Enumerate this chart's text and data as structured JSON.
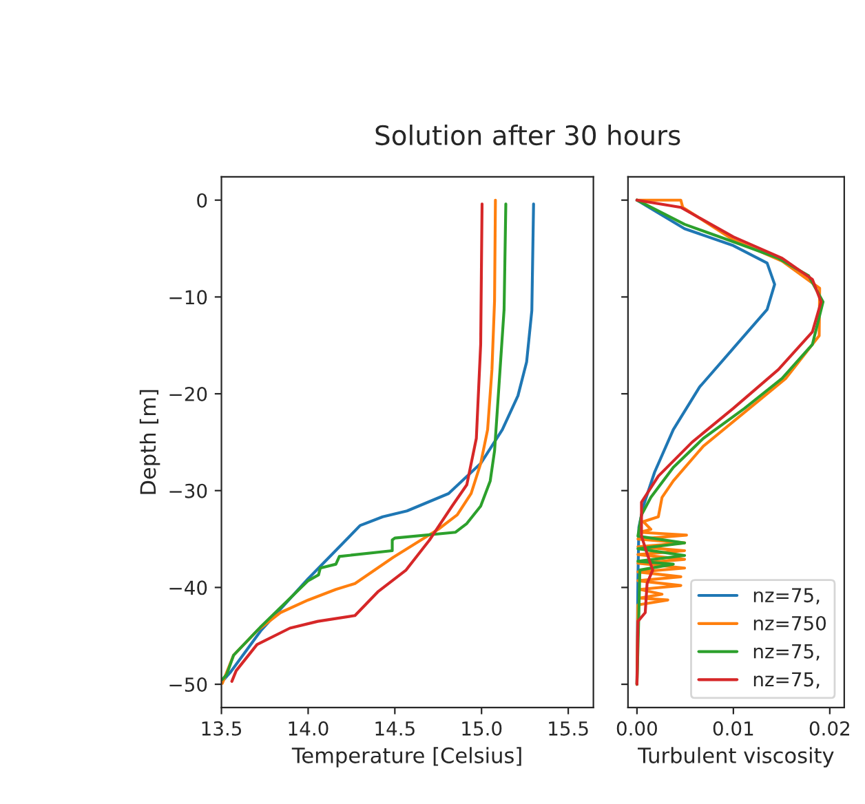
{
  "chart_data": [
    {
      "type": "line",
      "title": "Solution after 30 hours",
      "xlabel": "Temperature [Celsius]",
      "ylabel": "Depth [m]",
      "xlim": [
        13.5,
        15.645
      ],
      "xticks": [
        {
          "value": 13.5,
          "label": "13.5"
        },
        {
          "value": 14.0,
          "label": "14.0"
        },
        {
          "value": 14.5,
          "label": "14.5"
        },
        {
          "value": 15.0,
          "label": "15.0"
        },
        {
          "value": 15.5,
          "label": "15.5"
        }
      ],
      "ylim": [
        -52.4,
        2.4
      ],
      "yticks": [
        {
          "value": 0,
          "label": "0"
        },
        {
          "value": -10,
          "label": "−10"
        },
        {
          "value": -20,
          "label": "−20"
        },
        {
          "value": -30,
          "label": "−30"
        },
        {
          "value": -40,
          "label": "−40"
        },
        {
          "value": -50,
          "label": "−50"
        }
      ],
      "grid": false,
      "legend": false,
      "series": [
        {
          "color": "#1f77b4",
          "x": [
            15.3,
            15.29,
            15.26,
            15.21,
            15.12,
            14.995,
            14.81,
            14.57,
            14.43,
            14.3,
            14.0,
            13.73,
            13.55,
            13.505
          ],
          "values": [
            -0.4,
            -11.4,
            -16.7,
            -20.2,
            -23.7,
            -27.2,
            -30.3,
            -32.1,
            -32.7,
            -33.6,
            -39.1,
            -44.4,
            -48.8,
            -49.7
          ]
        },
        {
          "color": "#ff7f0e",
          "x": [
            15.08,
            15.075,
            15.06,
            15.035,
            14.995,
            14.94,
            14.86,
            14.75,
            14.49,
            14.27,
            14.16,
            14.0,
            13.84,
            13.71,
            13.57,
            13.505
          ],
          "values": [
            0,
            -10.4,
            -17.5,
            -23.7,
            -27.2,
            -30.3,
            -32.5,
            -34.0,
            -36.9,
            -39.6,
            -40.2,
            -41.3,
            -42.6,
            -44.4,
            -47.0,
            -49.9
          ]
        },
        {
          "color": "#2ca02c",
          "x": [
            15.14,
            15.13,
            15.1,
            15.075,
            15.05,
            14.995,
            14.915,
            14.85,
            14.5,
            14.485,
            14.485,
            14.18,
            14.16,
            14.07,
            14.06,
            14.0,
            13.73,
            13.57,
            13.53,
            13.505
          ],
          "values": [
            -0.4,
            -11.3,
            -19.3,
            -25.9,
            -29.0,
            -31.6,
            -33.4,
            -34.3,
            -34.9,
            -35.1,
            -36.2,
            -36.8,
            -37.6,
            -38.0,
            -38.7,
            -39.3,
            -44.0,
            -47.0,
            -49.0,
            -49.5
          ]
        },
        {
          "color": "#d62728",
          "x": [
            15.003,
            14.995,
            14.97,
            14.915,
            14.83,
            14.7,
            14.565,
            14.405,
            14.27,
            14.056,
            13.895,
            13.705,
            13.585,
            13.56
          ],
          "values": [
            -0.4,
            -14.9,
            -24.6,
            -29.4,
            -31.6,
            -35.1,
            -38.2,
            -40.4,
            -42.9,
            -43.5,
            -44.2,
            -45.9,
            -48.6,
            -49.7
          ]
        }
      ]
    },
    {
      "type": "line",
      "xlabel": "Turbulent viscosity",
      "xlim": [
        -0.00093,
        0.0215
      ],
      "xticks": [
        {
          "value": 0.0,
          "label": "0.00"
        },
        {
          "value": 0.01,
          "label": "0.01"
        },
        {
          "value": 0.02,
          "label": "0.02"
        }
      ],
      "ylim": [
        -52.4,
        2.4
      ],
      "yticks": [
        {
          "value": 0,
          "label": null
        },
        {
          "value": -10,
          "label": null
        },
        {
          "value": -20,
          "label": null
        },
        {
          "value": -30,
          "label": null
        },
        {
          "value": -40,
          "label": null
        },
        {
          "value": -50,
          "label": null
        }
      ],
      "tick_labels": "x",
      "grid": false,
      "legend": "bottom right",
      "series": [
        {
          "name": "nz=75,",
          "color": "#1f77b4",
          "x": [
            0,
            0.00494,
            0.01,
            0.0135,
            0.01428,
            0.0135,
            0.01,
            0.0065,
            0.00377,
            0.00183,
            0.00066,
            0.0002,
            0.0001,
            0
          ],
          "values": [
            0,
            -2.95,
            -4.7,
            -6.5,
            -8.7,
            -11.3,
            -15.3,
            -19.3,
            -23.7,
            -28.1,
            -31.6,
            -33.8,
            -39.1,
            -50
          ]
        },
        {
          "name": "nz=750",
          "color": "#ff7f0e",
          "x": [
            0,
            0.00455,
            0.00475,
            0.01,
            0.01506,
            0.01895,
            0.0189,
            0.01545,
            0.01117,
            0.00689,
            0.00377,
            0.0026,
            0.00222,
            0.00066,
            0.00144,
            0.0003,
            0.00514,
            0.0001,
            0.00494,
            0.0001,
            0.00494,
            0.0001,
            0.00494,
            0.0001,
            0.00494,
            0.0001,
            0.00455,
            0.0001,
            0.00455,
            0.0003,
            0.0026,
            0.0003,
            0.0032,
            0.0001,
            0
          ],
          "values": [
            0,
            0,
            -0.75,
            -4.1,
            -6.3,
            -9.1,
            -14.0,
            -18.4,
            -21.9,
            -25.4,
            -29.0,
            -30.7,
            -32.7,
            -33.2,
            -34.0,
            -34.3,
            -34.6,
            -35.0,
            -35.4,
            -35.8,
            -36.2,
            -36.6,
            -37.1,
            -37.5,
            -38.0,
            -38.4,
            -38.9,
            -39.3,
            -39.8,
            -40.2,
            -40.7,
            -41.1,
            -41.3,
            -41.8,
            -50
          ]
        },
        {
          "name": "nz=75,",
          "color": "#2ca02c",
          "x": [
            0,
            0.00494,
            0.01,
            0.01467,
            0.0178,
            0.0193,
            0.0182,
            0.01506,
            0.01117,
            0.00689,
            0.00377,
            0.00144,
            0.00047,
            0.0001,
            0.00494,
            0.0001,
            0.00494,
            0.0001,
            0.00377,
            0.0003,
            0.0002,
            0
          ],
          "values": [
            0,
            -2.5,
            -4.3,
            -6.0,
            -7.8,
            -10.5,
            -14.9,
            -18.4,
            -21.5,
            -24.6,
            -27.6,
            -30.7,
            -32.5,
            -34.7,
            -35.4,
            -36.0,
            -36.7,
            -37.3,
            -37.6,
            -38.2,
            -42.6,
            -50
          ]
        },
        {
          "name": "nz=75,",
          "color": "#d62728",
          "x": [
            0,
            0.00455,
            0.01,
            0.01506,
            0.0182,
            0.0191,
            0.0182,
            0.01467,
            0.01,
            0.00572,
            0.00222,
            0.00047,
            0.00047,
            0.00105,
            0.00163,
            0.00105,
            0.00086,
            0.0001,
            0
          ],
          "values": [
            0,
            -0.75,
            -3.8,
            -6.0,
            -8.2,
            -10.5,
            -13.6,
            -17.5,
            -21.5,
            -25.0,
            -28.5,
            -31.2,
            -34.7,
            -36.5,
            -38.2,
            -39.6,
            -42.6,
            -43.5,
            -50
          ]
        }
      ]
    }
  ]
}
